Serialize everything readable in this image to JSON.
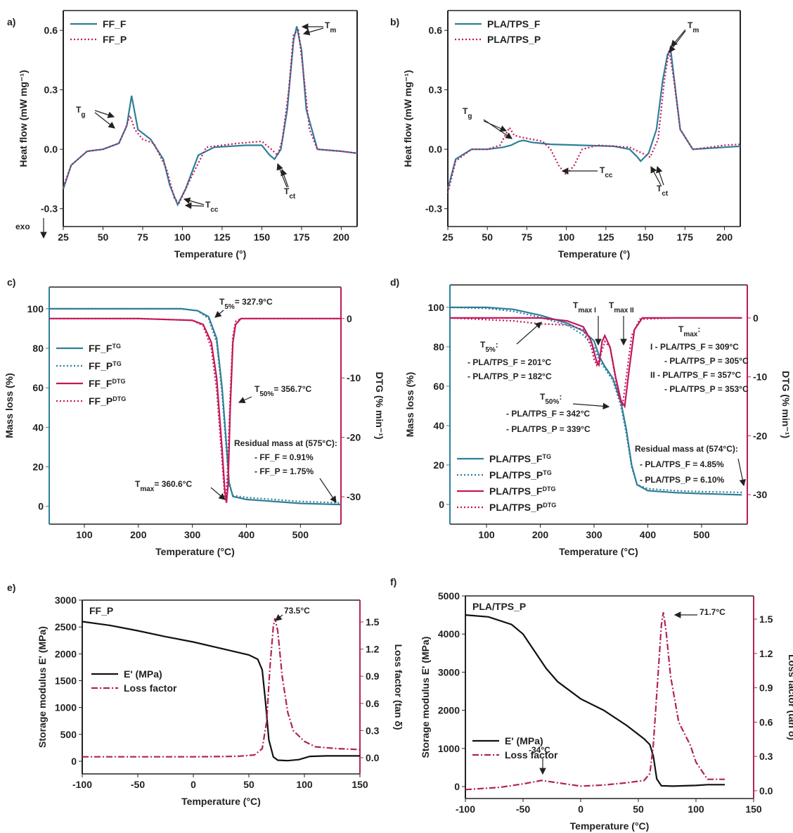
{
  "chart_data": [
    {
      "type": "line",
      "panel": "a)",
      "xlabel": "Temperature (°)",
      "ylabel": "Heat flow (mW mg⁻¹)",
      "xlim": [
        25,
        210
      ],
      "xticks": [
        25,
        50,
        75,
        100,
        125,
        150,
        175,
        200
      ],
      "ylim": [
        -0.39,
        0.7
      ],
      "yticks": [
        -0.3,
        {
          "value": 0,
          "label": "0.0"
        },
        0.3,
        0.6
      ],
      "series": [
        {
          "name": "FF_F",
          "color": "#2e7f9a",
          "style": "solid",
          "x": [
            25,
            30,
            40,
            50,
            60,
            65,
            68,
            72,
            80,
            88,
            92,
            97,
            102,
            110,
            120,
            140,
            150,
            155,
            158,
            162,
            166,
            170,
            172,
            175,
            178,
            185,
            200,
            210
          ],
          "values": [
            -0.2,
            -0.08,
            -0.01,
            0.0,
            0.03,
            0.12,
            0.27,
            0.1,
            0.05,
            -0.05,
            -0.18,
            -0.28,
            -0.2,
            -0.03,
            0.01,
            0.02,
            0.02,
            -0.03,
            -0.05,
            0.0,
            0.2,
            0.55,
            0.62,
            0.5,
            0.2,
            0.0,
            -0.01,
            -0.02
          ]
        },
        {
          "name": "FF_P",
          "color": "#c2185b",
          "style": "dotted",
          "x": [
            25,
            30,
            40,
            50,
            60,
            64,
            67,
            70,
            75,
            82,
            90,
            95,
            98,
            105,
            115,
            135,
            150,
            156,
            160,
            163,
            167,
            170,
            173,
            176,
            180,
            185,
            200,
            210
          ],
          "values": [
            -0.19,
            -0.08,
            -0.01,
            0.0,
            0.03,
            0.1,
            0.17,
            0.1,
            0.05,
            0.03,
            -0.1,
            -0.25,
            -0.27,
            -0.15,
            0.01,
            0.03,
            0.04,
            0.0,
            -0.03,
            0.05,
            0.3,
            0.58,
            0.6,
            0.4,
            0.1,
            0.0,
            -0.01,
            -0.02
          ]
        }
      ],
      "annotations": [
        {
          "base": "T",
          "sub": "g"
        },
        {
          "base": "T",
          "sub": "cc"
        },
        {
          "base": "T",
          "sub": "m"
        },
        {
          "base": "T",
          "sub": "ct"
        },
        "exo"
      ]
    },
    {
      "type": "line",
      "panel": "b)",
      "xlabel": "Temperature (°)",
      "ylabel": "Heat flow (mW mg⁻¹)",
      "xlim": [
        25,
        210
      ],
      "xticks": [
        25,
        50,
        75,
        100,
        125,
        150,
        175,
        200
      ],
      "ylim": [
        -0.39,
        0.7
      ],
      "yticks": [
        -0.3,
        {
          "value": 0,
          "label": "0.0"
        },
        0.3,
        0.6
      ],
      "series": [
        {
          "name": "PLA/TPS_F",
          "color": "#2e7f9a",
          "style": "solid",
          "x": [
            25,
            30,
            40,
            50,
            60,
            65,
            70,
            73,
            78,
            90,
            110,
            130,
            140,
            145,
            147,
            152,
            157,
            161,
            164,
            166,
            169,
            172,
            180,
            200,
            210
          ],
          "values": [
            -0.2,
            -0.05,
            0.0,
            0.0,
            0.01,
            0.02,
            0.04,
            0.045,
            0.035,
            0.025,
            0.02,
            0.015,
            0.0,
            -0.04,
            -0.06,
            -0.02,
            0.1,
            0.35,
            0.48,
            0.5,
            0.3,
            0.1,
            0.0,
            0.01,
            0.015
          ]
        },
        {
          "name": "PLA/TPS_P",
          "color": "#c2185b",
          "style": "dotted",
          "x": [
            25,
            30,
            40,
            50,
            58,
            62,
            64,
            67,
            72,
            85,
            90,
            95,
            100,
            105,
            110,
            120,
            140,
            148,
            153,
            158,
            162,
            165,
            168,
            172,
            180,
            200,
            210
          ],
          "values": [
            -0.22,
            -0.06,
            0.0,
            0.0,
            0.02,
            0.08,
            0.11,
            0.07,
            0.06,
            0.04,
            0.0,
            -0.08,
            -0.13,
            -0.08,
            0.0,
            0.02,
            0.01,
            -0.02,
            -0.04,
            0.05,
            0.35,
            0.5,
            0.35,
            0.1,
            0.0,
            0.02,
            0.025
          ]
        }
      ],
      "annotations": [
        {
          "base": "T",
          "sub": "g"
        },
        {
          "base": "T",
          "sub": "cc"
        },
        {
          "base": "T",
          "sub": "m"
        },
        {
          "base": "T",
          "sub": "ct"
        }
      ]
    },
    {
      "type": "line",
      "panel": "c)",
      "xlabel": "Temperature (°C)",
      "ylabel": "Mass loss (%)",
      "y2label": "DTG (% min⁻¹)",
      "ycolor": "#2e7f9a",
      "y2color": "#c2185b",
      "xlim": [
        35,
        575
      ],
      "xticks": [
        100,
        200,
        300,
        400,
        500
      ],
      "ylim": [
        -9,
        111
      ],
      "yticks": [
        0,
        20,
        40,
        60,
        80,
        100
      ],
      "y2lim": [
        -34.6,
        5.3
      ],
      "y2ticks": [
        0,
        -10,
        -20,
        -30
      ],
      "series": [
        {
          "name": "FF_F",
          "sup": "TG",
          "color": "#2e7f9a",
          "style": "solid",
          "x": [
            35,
            100,
            200,
            280,
            310,
            330,
            345,
            355,
            362,
            368,
            375,
            400,
            500,
            575
          ],
          "values": [
            100,
            100,
            100,
            100,
            99,
            96,
            85,
            60,
            35,
            12,
            5,
            3.5,
            1.5,
            0.91
          ]
        },
        {
          "name": "FF_P",
          "sup": "TG",
          "color": "#2e7f9a",
          "style": "dotted",
          "x": [
            35,
            100,
            200,
            280,
            310,
            330,
            345,
            355,
            362,
            368,
            375,
            400,
            500,
            575
          ],
          "values": [
            100,
            100,
            100,
            100,
            99,
            95,
            83,
            57,
            32,
            11,
            5.5,
            4.5,
            2.5,
            1.75
          ]
        },
        {
          "name": "FF_F",
          "sup": "DTG",
          "color": "#c2185b",
          "style": "solid",
          "axis": "y2",
          "x": [
            35,
            200,
            300,
            320,
            335,
            345,
            355,
            360,
            363,
            366,
            370,
            375,
            380,
            390,
            450,
            575
          ],
          "values": [
            0,
            0,
            -0.3,
            -1,
            -4,
            -10,
            -22,
            -29,
            -31,
            -28,
            -15,
            -4,
            -1,
            0,
            0,
            0
          ]
        },
        {
          "name": "FF_P",
          "sup": "DTG",
          "color": "#c2185b",
          "style": "dotted",
          "axis": "y2",
          "x": [
            35,
            200,
            300,
            320,
            335,
            345,
            355,
            360,
            362,
            365,
            370,
            375,
            380,
            390,
            450,
            575
          ],
          "values": [
            0,
            0,
            -0.3,
            -1.2,
            -5,
            -12,
            -24,
            -30,
            -30.5,
            -26,
            -13,
            -3,
            -0.5,
            0,
            0,
            0
          ]
        }
      ],
      "annotations": [
        {
          "base": "T",
          "sub": "5%",
          "tail": "= 327.9°C"
        },
        {
          "base": "T",
          "sub": "50%",
          "tail": "= 356.7°C"
        },
        {
          "base": "T",
          "sub": "max",
          "tail": "= 360.6°C"
        },
        "Residual mass at (575°C):",
        "- FF_F = 0.91%",
        "- FF_P = 1.75%"
      ]
    },
    {
      "type": "line",
      "panel": "d)",
      "xlabel": "Temperature (°C)",
      "ylabel": "Mass loss (%)",
      "y2label": "DTG (% min⁻¹)",
      "ycolor": "#2e7f9a",
      "y2color": "#c2185b",
      "xlim": [
        32,
        585
      ],
      "xticks": [
        100,
        200,
        300,
        400,
        500
      ],
      "ylim": [
        -10,
        111.4
      ],
      "yticks": [
        0,
        20,
        40,
        60,
        80,
        100
      ],
      "y2lim": [
        -35,
        5.6
      ],
      "y2ticks": [
        0,
        -10,
        -20,
        -30
      ],
      "series": [
        {
          "name": "PLA/TPS_F",
          "sup": "TG",
          "color": "#2e7f9a",
          "style": "solid",
          "x": [
            32,
            100,
            150,
            200,
            250,
            280,
            300,
            310,
            320,
            335,
            350,
            360,
            370,
            380,
            400,
            450,
            500,
            575
          ],
          "values": [
            100,
            100,
            99,
            96,
            92,
            88,
            83,
            75,
            70,
            64,
            52,
            38,
            20,
            10,
            7,
            6,
            5.5,
            4.85
          ]
        },
        {
          "name": "PLA/TPS_P",
          "sup": "TG",
          "color": "#2e7f9a",
          "style": "dotted",
          "x": [
            32,
            100,
            150,
            200,
            250,
            280,
            300,
            310,
            320,
            335,
            350,
            360,
            370,
            380,
            400,
            450,
            500,
            575
          ],
          "values": [
            100,
            99.5,
            98,
            95,
            91,
            86,
            80,
            73,
            69,
            63,
            50,
            36,
            19,
            10,
            8,
            7,
            6.5,
            6.1
          ]
        },
        {
          "name": "PLA/TPS_F",
          "sup": "DTG",
          "color": "#c2185b",
          "style": "solid",
          "axis": "y2",
          "x": [
            32,
            200,
            250,
            280,
            295,
            305,
            309,
            315,
            320,
            330,
            340,
            350,
            357,
            365,
            375,
            390,
            450,
            575
          ],
          "values": [
            0,
            0,
            -0.5,
            -1.5,
            -4,
            -7.5,
            -8,
            -4,
            -3,
            -5,
            -10,
            -14,
            -15,
            -9,
            -2,
            0,
            0,
            0
          ]
        },
        {
          "name": "PLA/TPS_P",
          "sup": "DTG",
          "color": "#c2185b",
          "style": "dotted",
          "axis": "y2",
          "x": [
            32,
            150,
            200,
            250,
            280,
            295,
            300,
            305,
            310,
            320,
            330,
            345,
            353,
            360,
            370,
            385,
            450,
            575
          ],
          "values": [
            0,
            -0.5,
            -1,
            -1.2,
            -2,
            -5,
            -7,
            -8,
            -7,
            -4,
            -5,
            -13,
            -15,
            -10,
            -3,
            -0.2,
            0,
            0
          ]
        }
      ],
      "annotations": [
        {
          "base": "T",
          "sub": "5%",
          "tail": ":"
        },
        "- PLA/TPS_F = 201°C",
        "- PLA/TPS_P = 182°C",
        {
          "base": "T",
          "sub": "max I"
        },
        {
          "base": "T",
          "sub": "max II"
        },
        {
          "base": "T",
          "sub": "max",
          "tail": ":"
        },
        "I - PLA/TPS_F = 309°C",
        "- PLA/TPS_P = 305°C",
        "II - PLA/TPS_F = 357°C",
        "- PLA/TPS_P = 353°C",
        {
          "base": "T",
          "sub": "50%",
          "tail": ":"
        },
        "- PLA/TPS_F = 342°C",
        "- PLA/TPS_P = 339°C",
        "Residual mass at (574°C):",
        "- PLA/TPS_F = 4.85%",
        "- PLA/TPS_P = 6.10%"
      ]
    },
    {
      "type": "line",
      "panel": "e)",
      "title": "FF_P",
      "xlabel": "Temperature (°C)",
      "ylabel": "Storage modulus E' (MPa)",
      "y2label": "Loss factor (tan δ)",
      "y2color": "#b0245c",
      "xlim": [
        -100,
        150
      ],
      "xticks": [
        -100,
        -50,
        0,
        50,
        100,
        150
      ],
      "ylim": [
        -236,
        3000
      ],
      "yticks": [
        0,
        500,
        1000,
        1500,
        2000,
        2500,
        3000
      ],
      "y2lim": [
        -0.179,
        1.741
      ],
      "y2ticks": [
        {
          "value": 0,
          "label": "0.0"
        },
        0.3,
        0.6,
        0.9,
        1.2,
        1.5
      ],
      "series": [
        {
          "name": "E' (MPa)",
          "color": "#111111",
          "style": "solid",
          "x": [
            -100,
            -75,
            -50,
            -25,
            0,
            25,
            50,
            58,
            62,
            65,
            68,
            72,
            76,
            85,
            95,
            105,
            120,
            150
          ],
          "values": [
            2600,
            2530,
            2430,
            2320,
            2220,
            2100,
            1980,
            1900,
            1700,
            1100,
            400,
            80,
            20,
            10,
            30,
            90,
            100,
            100
          ]
        },
        {
          "name": "Loss factor",
          "color": "#b0245c",
          "style": "dashdot",
          "axis": "y2",
          "x": [
            -100,
            0,
            40,
            55,
            62,
            66,
            69,
            72,
            73.5,
            76,
            80,
            85,
            90,
            100,
            110,
            130,
            150
          ],
          "values": [
            0.01,
            0.01,
            0.015,
            0.03,
            0.1,
            0.4,
            1.0,
            1.45,
            1.54,
            1.4,
            0.9,
            0.5,
            0.3,
            0.18,
            0.12,
            0.1,
            0.09
          ]
        }
      ],
      "annotations": [
        "73.5°C"
      ]
    },
    {
      "type": "line",
      "panel": "f)",
      "title": "PLA/TPS_P",
      "xlabel": "Temperature (°C)",
      "ylabel": "Storage modulus E' (MPa)",
      "y2label": "Loss factor (tan δ)",
      "y2color": "#b0245c",
      "xlim": [
        -100,
        150
      ],
      "xticks": [
        -100,
        -50,
        0,
        50,
        100,
        150
      ],
      "ylim": [
        -314,
        5000
      ],
      "yticks": [
        0,
        1000,
        2000,
        3000,
        4000,
        5000
      ],
      "y2lim": [
        -0.068,
        1.703
      ],
      "y2ticks": [
        {
          "value": 0,
          "label": "0.0"
        },
        0.3,
        0.6,
        0.9,
        1.2,
        1.5
      ],
      "series": [
        {
          "name": "E' (MPa)",
          "color": "#111111",
          "style": "solid",
          "x": [
            -100,
            -80,
            -60,
            -50,
            -40,
            -30,
            -20,
            0,
            20,
            40,
            55,
            60,
            63,
            66,
            70,
            80,
            100,
            110,
            125
          ],
          "values": [
            4500,
            4450,
            4250,
            4000,
            3550,
            3100,
            2750,
            2300,
            2000,
            1600,
            1250,
            1100,
            800,
            200,
            20,
            10,
            30,
            50,
            50
          ]
        },
        {
          "name": "Loss factor",
          "color": "#b0245c",
          "style": "dashdot",
          "axis": "y2",
          "x": [
            -100,
            -70,
            -50,
            -34,
            -20,
            0,
            20,
            40,
            55,
            60,
            63,
            67,
            70,
            71.7,
            74,
            78,
            85,
            95,
            100,
            110,
            125
          ],
          "values": [
            0.01,
            0.03,
            0.06,
            0.09,
            0.07,
            0.04,
            0.05,
            0.07,
            0.09,
            0.15,
            0.4,
            1.0,
            1.45,
            1.56,
            1.4,
            1.0,
            0.6,
            0.4,
            0.25,
            0.1,
            0.1
          ]
        }
      ],
      "annotations": [
        "71.7°C",
        "-34°C"
      ]
    }
  ]
}
